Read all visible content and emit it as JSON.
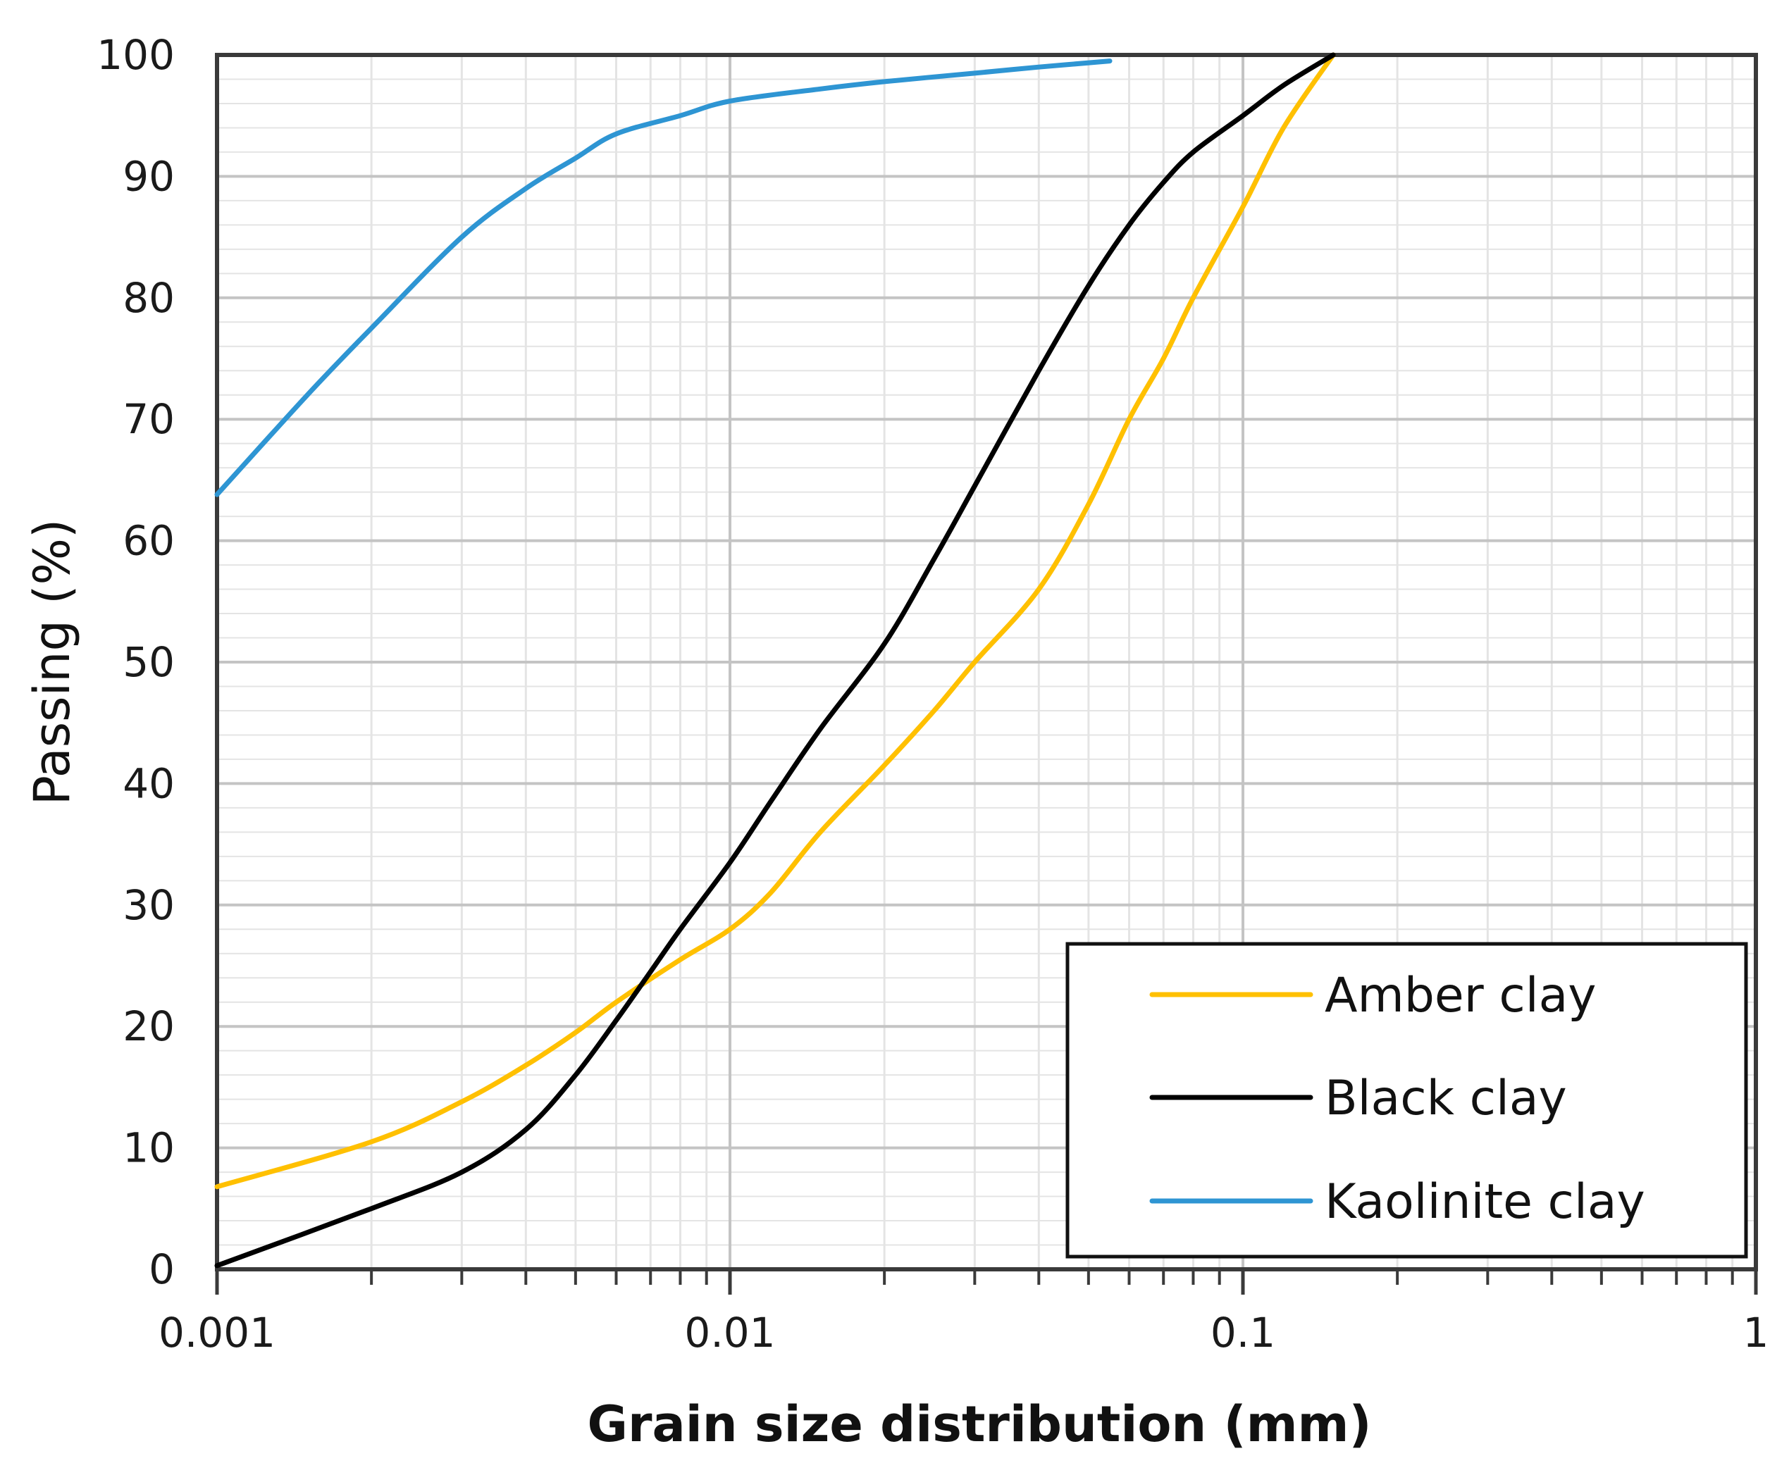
{
  "chart_data": {
    "type": "line",
    "title": "",
    "xlabel": "Grain size distribution (mm)",
    "ylabel": "Passing (%)",
    "xscale": "log",
    "xlim": [
      0.001,
      1
    ],
    "ylim": [
      0,
      100
    ],
    "grid": true,
    "legend_position": "bottom-right",
    "x_tick_labels": [
      "0.001",
      "0.01",
      "0.1",
      "1"
    ],
    "y_tick_labels": [
      "0",
      "10",
      "20",
      "30",
      "40",
      "50",
      "60",
      "70",
      "80",
      "90",
      "100"
    ],
    "series": [
      {
        "name": "Amber clay",
        "color": "#FFC000",
        "points": [
          [
            0.001,
            6.8
          ],
          [
            0.002,
            10.5
          ],
          [
            0.003,
            13.8
          ],
          [
            0.004,
            16.8
          ],
          [
            0.005,
            19.5
          ],
          [
            0.006,
            22.0
          ],
          [
            0.008,
            25.5
          ],
          [
            0.01,
            28.0
          ],
          [
            0.012,
            31.0
          ],
          [
            0.015,
            36.0
          ],
          [
            0.02,
            41.5
          ],
          [
            0.025,
            46.0
          ],
          [
            0.03,
            50.0
          ],
          [
            0.04,
            56.0
          ],
          [
            0.05,
            63.0
          ],
          [
            0.06,
            70.0
          ],
          [
            0.07,
            75.0
          ],
          [
            0.08,
            80.0
          ],
          [
            0.1,
            87.5
          ],
          [
            0.12,
            94.0
          ],
          [
            0.15,
            100.0
          ]
        ]
      },
      {
        "name": "Black clay",
        "color": "#000000",
        "points": [
          [
            0.001,
            0.3
          ],
          [
            0.002,
            5.0
          ],
          [
            0.003,
            8.0
          ],
          [
            0.004,
            11.5
          ],
          [
            0.005,
            16.0
          ],
          [
            0.006,
            20.5
          ],
          [
            0.007,
            24.5
          ],
          [
            0.008,
            28.0
          ],
          [
            0.01,
            33.5
          ],
          [
            0.012,
            38.5
          ],
          [
            0.015,
            44.5
          ],
          [
            0.02,
            51.5
          ],
          [
            0.025,
            58.5
          ],
          [
            0.03,
            64.5
          ],
          [
            0.04,
            74.0
          ],
          [
            0.05,
            81.0
          ],
          [
            0.06,
            86.0
          ],
          [
            0.07,
            89.5
          ],
          [
            0.08,
            92.0
          ],
          [
            0.1,
            95.0
          ],
          [
            0.12,
            97.5
          ],
          [
            0.15,
            100.0
          ]
        ]
      },
      {
        "name": "Kaolinite clay",
        "color": "#2E95D3",
        "points": [
          [
            0.001,
            63.8
          ],
          [
            0.0015,
            72.0
          ],
          [
            0.002,
            77.5
          ],
          [
            0.003,
            85.0
          ],
          [
            0.004,
            89.0
          ],
          [
            0.005,
            91.5
          ],
          [
            0.006,
            93.5
          ],
          [
            0.008,
            95.0
          ],
          [
            0.01,
            96.2
          ],
          [
            0.015,
            97.2
          ],
          [
            0.02,
            97.8
          ],
          [
            0.03,
            98.5
          ],
          [
            0.04,
            99.0
          ],
          [
            0.055,
            99.5
          ]
        ]
      }
    ]
  }
}
